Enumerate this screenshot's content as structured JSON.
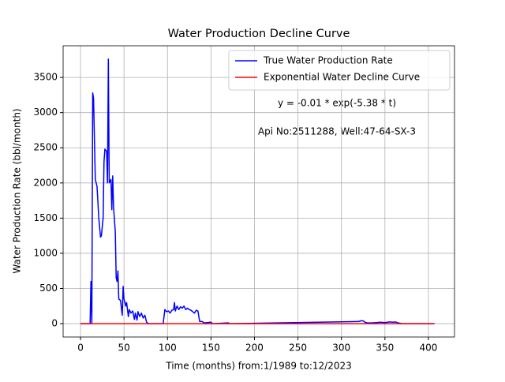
{
  "chart_data": {
    "type": "line",
    "title": "Water Production Decline Curve",
    "xlabel": "Time (months) from:1/1989 to:12/2023",
    "ylabel": "Water Production Rate (bbl/month)",
    "annotations": [
      "y = -0.01 * exp(-5.38 * t)",
      "Api No:2511288, Well:47-64-SX-3"
    ],
    "series": [
      {
        "name": "True Water Production Rate",
        "color": "#0000ff",
        "x": [
          0,
          11,
          12,
          13,
          14,
          15,
          17,
          19,
          21,
          23,
          24,
          26,
          27,
          28,
          30,
          31,
          32,
          33,
          35,
          36,
          37,
          38,
          40,
          41,
          42,
          43,
          44,
          46,
          48,
          49,
          50,
          52,
          53,
          55,
          56,
          58,
          60,
          62,
          63,
          65,
          66,
          68,
          70,
          72,
          74,
          76,
          78,
          95,
          97,
          99,
          101,
          103,
          105,
          107,
          108,
          109,
          111,
          113,
          115,
          117,
          119,
          121,
          123,
          125,
          127,
          129,
          131,
          133,
          135,
          137,
          140,
          142,
          150,
          152,
          170,
          172,
          320,
          322,
          325,
          327,
          330,
          335,
          340,
          345,
          350,
          355,
          360,
          362,
          365,
          370,
          407
        ],
        "values": [
          0,
          0,
          600,
          0,
          3280,
          3200,
          2050,
          1950,
          1500,
          1230,
          1250,
          1500,
          2300,
          2480,
          2450,
          2000,
          3760,
          2000,
          2050,
          1620,
          2100,
          1650,
          1300,
          650,
          600,
          750,
          350,
          330,
          120,
          530,
          350,
          250,
          300,
          100,
          200,
          150,
          180,
          60,
          150,
          50,
          170,
          100,
          150,
          80,
          120,
          20,
          0,
          0,
          200,
          170,
          180,
          150,
          190,
          200,
          300,
          180,
          250,
          200,
          240,
          220,
          250,
          200,
          220,
          200,
          190,
          170,
          150,
          190,
          180,
          30,
          30,
          10,
          20,
          0,
          10,
          0,
          30,
          40,
          40,
          20,
          10,
          10,
          15,
          20,
          15,
          25,
          20,
          25,
          10,
          0,
          0
        ]
      },
      {
        "name": "Exponential Water Decline Curve",
        "color": "#ff0000",
        "x": [
          0,
          407
        ],
        "values": [
          -0.01,
          0
        ]
      }
    ],
    "xlim": [
      -20,
      430
    ],
    "ylim": [
      -190,
      3950
    ],
    "xticks": [
      0,
      50,
      100,
      150,
      200,
      250,
      300,
      350,
      400
    ],
    "yticks": [
      0,
      500,
      1000,
      1500,
      2000,
      2500,
      3000,
      3500
    ],
    "grid": true,
    "legend": "upper right"
  }
}
